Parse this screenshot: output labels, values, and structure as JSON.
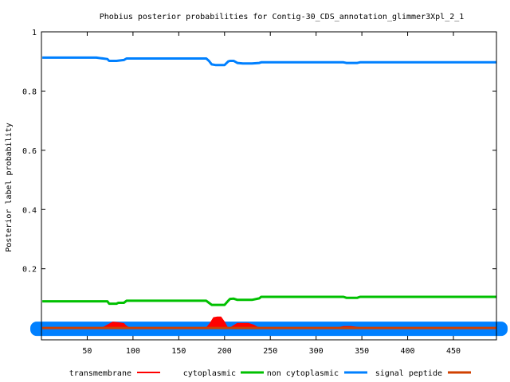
{
  "chart_data": {
    "type": "line",
    "title": "Phobius posterior probabilities for Contig-30_CDS_annotation_glimmer3Xpl_2_1",
    "xlabel": "",
    "ylabel": "Posterior label probability",
    "xlim": [
      0,
      497
    ],
    "ylim": [
      -0.04,
      1.0
    ],
    "grid": false,
    "legend_position": "bottom",
    "x_ticks": [
      "50",
      "100",
      "150",
      "200",
      "250",
      "300",
      "350",
      "400",
      "450"
    ],
    "x_tick_values": [
      50,
      100,
      150,
      200,
      250,
      300,
      350,
      400,
      450
    ],
    "y_ticks": [
      "0.2",
      "0.4",
      "0.6",
      "0.8",
      "1"
    ],
    "y_tick_values": [
      0.2,
      0.4,
      0.6,
      0.8,
      1.0
    ],
    "series": [
      {
        "name": "transmembrane",
        "color": "#ff0000",
        "fill": true,
        "x": [
          1,
          65,
          68,
          72,
          78,
          84,
          90,
          92,
          96,
          180,
          184,
          188,
          192,
          196,
          200,
          203,
          206,
          210,
          214,
          220,
          226,
          232,
          236,
          240,
          320,
          325,
          330,
          338,
          344,
          350,
          497
        ],
        "y": [
          0,
          0,
          0.003,
          0.01,
          0.02,
          0.018,
          0.015,
          0.008,
          0,
          0,
          0.015,
          0.035,
          0.037,
          0.037,
          0.02,
          0.003,
          0,
          0.008,
          0.016,
          0.016,
          0.016,
          0.01,
          0.003,
          0,
          0,
          0.002,
          0.005,
          0.005,
          0.003,
          0,
          0
        ]
      },
      {
        "name": "cytoplasmic",
        "color": "#00c000",
        "fill": false,
        "x": [
          1,
          72,
          74,
          82,
          84,
          90,
          93,
          96,
          180,
          183,
          186,
          190,
          200,
          204,
          206,
          210,
          214,
          220,
          230,
          238,
          240,
          245,
          330,
          333,
          345,
          348,
          497
        ],
        "y": [
          0.09,
          0.09,
          0.082,
          0.082,
          0.085,
          0.085,
          0.092,
          0.092,
          0.092,
          0.085,
          0.078,
          0.078,
          0.078,
          0.092,
          0.098,
          0.099,
          0.095,
          0.095,
          0.095,
          0.1,
          0.105,
          0.105,
          0.105,
          0.102,
          0.102,
          0.105,
          0.105
        ]
      },
      {
        "name": "non cytoplasmic",
        "color": "#0080ff",
        "fill": false,
        "x": [
          1,
          60,
          72,
          74,
          82,
          90,
          93,
          96,
          180,
          183,
          186,
          190,
          200,
          204,
          206,
          210,
          214,
          220,
          230,
          238,
          240,
          245,
          330,
          333,
          345,
          348,
          497
        ],
        "y": [
          0.913,
          0.913,
          0.908,
          0.902,
          0.902,
          0.905,
          0.91,
          0.91,
          0.91,
          0.902,
          0.89,
          0.888,
          0.888,
          0.9,
          0.902,
          0.902,
          0.895,
          0.893,
          0.893,
          0.895,
          0.897,
          0.897,
          0.897,
          0.895,
          0.895,
          0.897,
          0.897
        ]
      },
      {
        "name": "signal peptide",
        "color": "#d04000",
        "fill": false,
        "x": [
          1,
          497
        ],
        "y": [
          0,
          0
        ]
      }
    ]
  }
}
